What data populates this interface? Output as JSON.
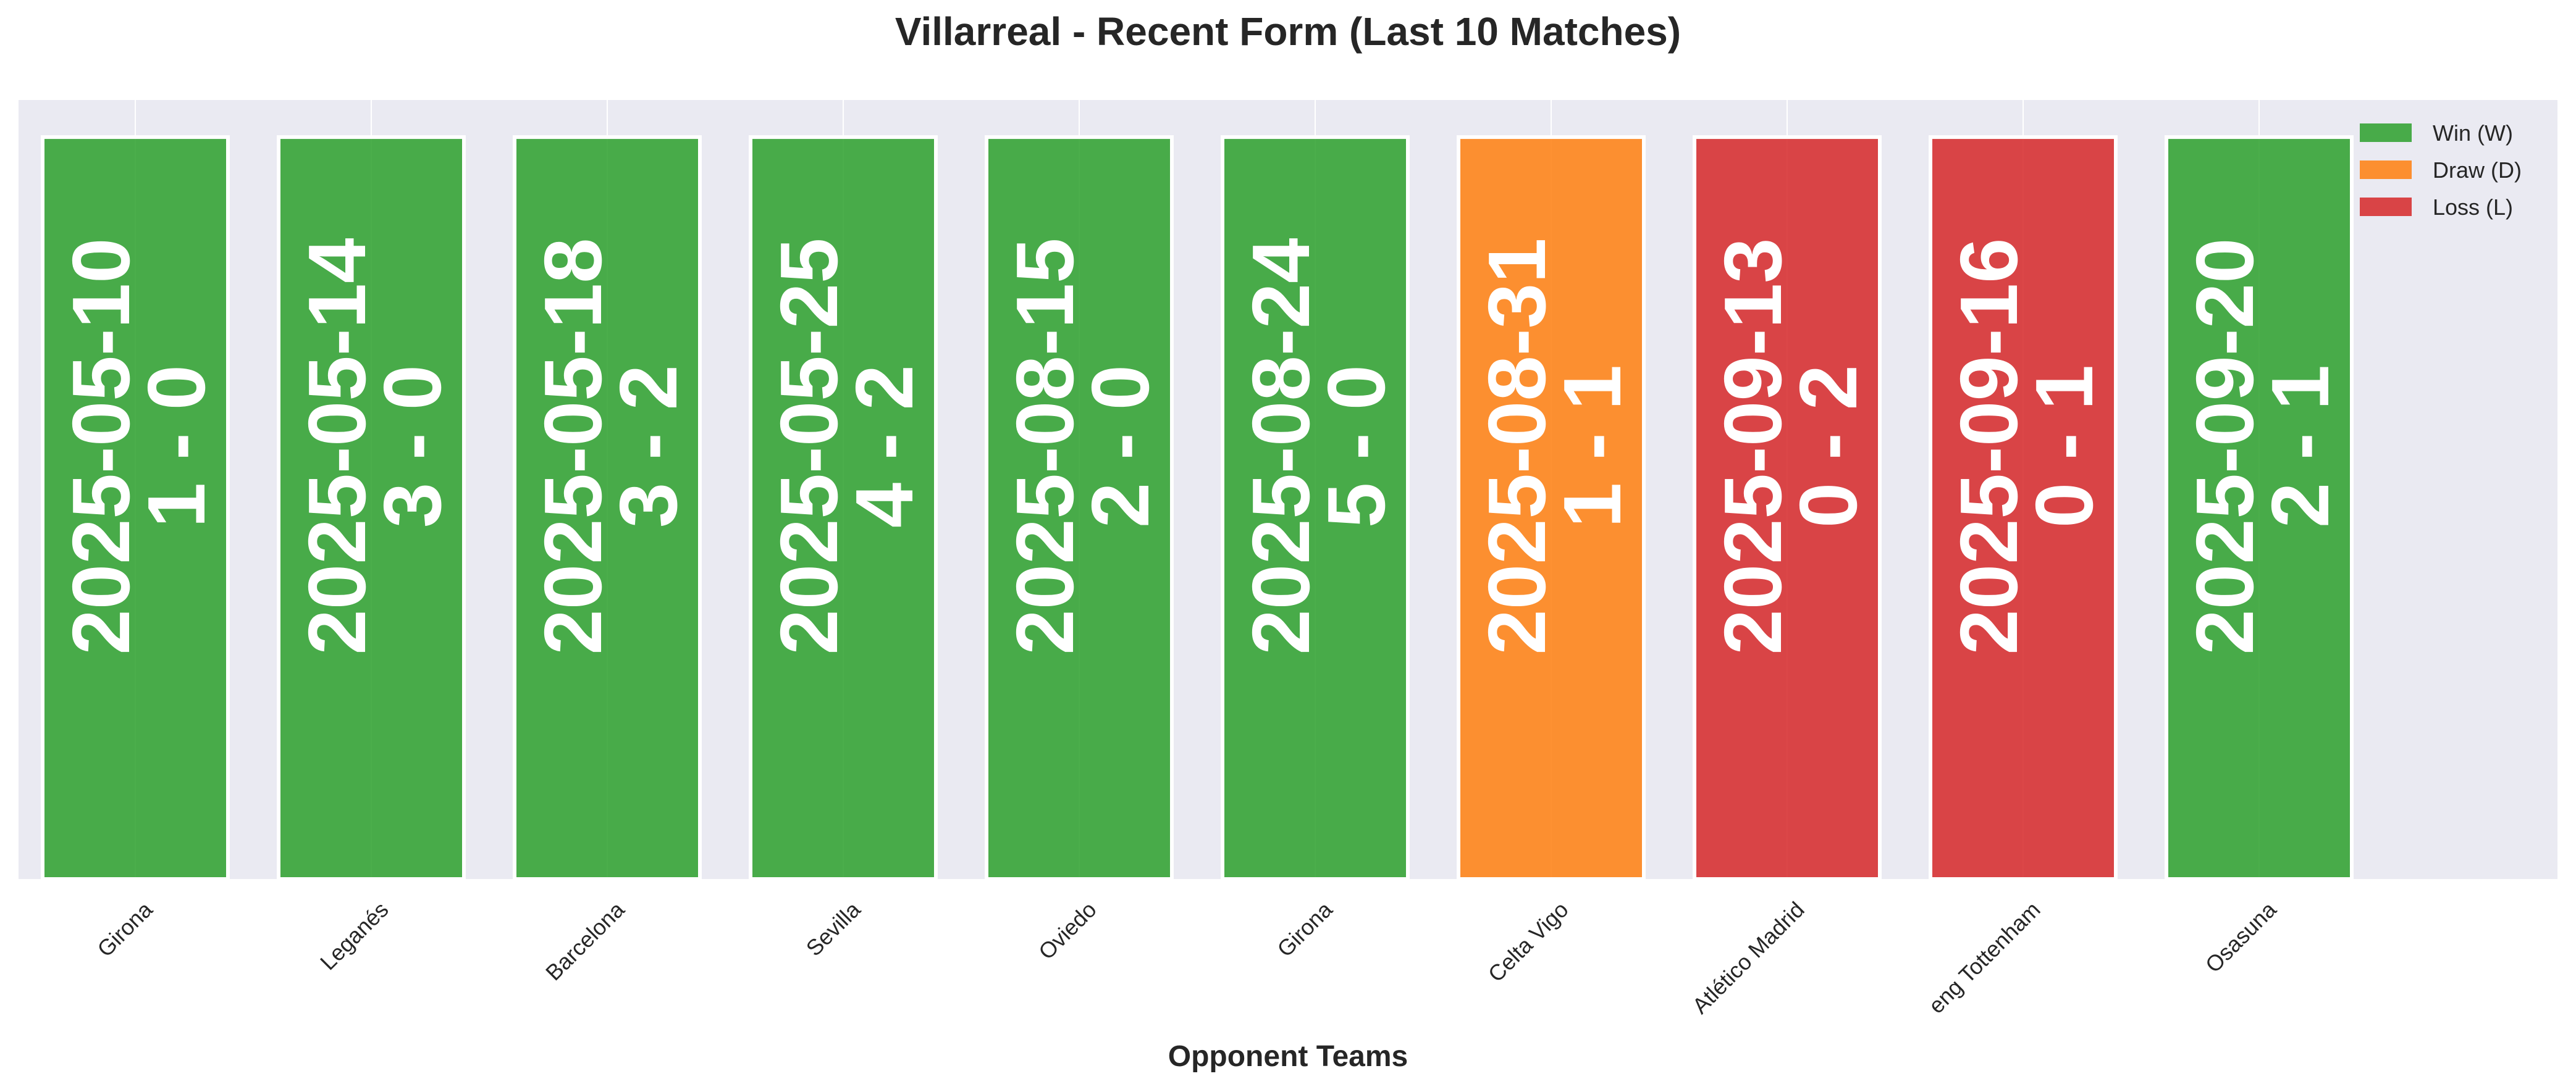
{
  "chart_data": {
    "type": "bar",
    "title": "Villarreal - Recent Form (Last 10 Matches)",
    "xlabel": "Opponent Teams",
    "ylabel": "",
    "categories": [
      "Girona",
      "Leganés",
      "Barcelona",
      "Sevilla",
      "Oviedo",
      "Girona",
      "Celta Vigo",
      "Atlético Madrid",
      "eng Tottenham",
      "Osasuna"
    ],
    "values": [
      1,
      1,
      1,
      1,
      1,
      1,
      1,
      1,
      1,
      1
    ],
    "results": [
      "W",
      "W",
      "W",
      "W",
      "W",
      "W",
      "D",
      "L",
      "L",
      "W"
    ],
    "dates": [
      "2025-05-10",
      "2025-05-14",
      "2025-05-18",
      "2025-05-25",
      "2025-08-15",
      "2025-08-24",
      "2025-08-31",
      "2025-09-13",
      "2025-09-16",
      "2025-09-20"
    ],
    "scores": [
      "1 - 0",
      "3 - 0",
      "3 - 2",
      "4 - 2",
      "2 - 0",
      "5 - 0",
      "1 - 1",
      "0 - 2",
      "0 - 1",
      "2 - 1"
    ],
    "ylim": [
      0,
      1.05
    ],
    "grid": true,
    "legend_position": "top-right",
    "legend": [
      {
        "key": "W",
        "label": "Win (W)",
        "color": "#2ca02c"
      },
      {
        "key": "D",
        "label": "Draw (D)",
        "color": "#ff7f0e"
      },
      {
        "key": "L",
        "label": "Loss (L)",
        "color": "#d62728"
      }
    ],
    "colors": {
      "W": "#2ca02c",
      "D": "#ff7f0e",
      "L": "#d62728",
      "background": "#eaeaf2"
    }
  }
}
